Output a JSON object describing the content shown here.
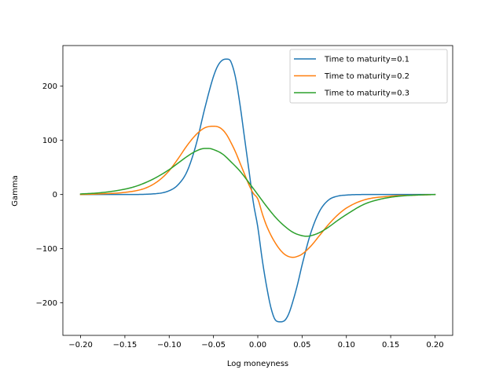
{
  "chart_data": {
    "type": "line",
    "title": "",
    "xlabel": "Log moneyness",
    "ylabel": "Gamma",
    "xlim": [
      -0.22,
      0.22
    ],
    "ylim": [
      -260,
      275
    ],
    "grid": false,
    "legend_placement": "top-right",
    "x_ticks": [
      {
        "value": -0.2,
        "label": "−0.20"
      },
      {
        "value": -0.15,
        "label": "−0.15"
      },
      {
        "value": -0.1,
        "label": "−0.10"
      },
      {
        "value": -0.05,
        "label": "−0.05"
      },
      {
        "value": 0.0,
        "label": "0.00"
      },
      {
        "value": 0.05,
        "label": "0.05"
      },
      {
        "value": 0.1,
        "label": "0.10"
      },
      {
        "value": 0.15,
        "label": "0.15"
      },
      {
        "value": 0.2,
        "label": "0.20"
      }
    ],
    "y_ticks": [
      {
        "value": -200,
        "label": "−200"
      },
      {
        "value": -100,
        "label": "−100"
      },
      {
        "value": 0,
        "label": "0"
      },
      {
        "value": 100,
        "label": "100"
      },
      {
        "value": 200,
        "label": "200"
      }
    ],
    "series": [
      {
        "name": "Time to maturity=0.1",
        "color": "#1f77b4",
        "x": [
          -0.2,
          -0.15,
          -0.12,
          -0.1,
          -0.09,
          -0.08,
          -0.07,
          -0.06,
          -0.05,
          -0.045,
          -0.04,
          -0.035,
          -0.032,
          -0.03,
          -0.025,
          -0.02,
          -0.015,
          -0.01,
          -0.005,
          0.0,
          0.005,
          0.01,
          0.015,
          0.02,
          0.025,
          0.03,
          0.035,
          0.04,
          0.045,
          0.05,
          0.06,
          0.07,
          0.08,
          0.09,
          0.1,
          0.12,
          0.15,
          0.2
        ],
        "y": [
          0,
          0,
          1,
          7,
          18,
          42,
          90,
          158,
          218,
          238,
          248,
          250,
          249,
          244,
          215,
          165,
          105,
          45,
          -15,
          -60,
          -120,
          -170,
          -210,
          -232,
          -235,
          -233,
          -220,
          -195,
          -165,
          -130,
          -70,
          -30,
          -10,
          -3,
          -1,
          0,
          0,
          0
        ]
      },
      {
        "name": "Time to maturity=0.2",
        "color": "#ff7f0e",
        "x": [
          -0.2,
          -0.18,
          -0.15,
          -0.13,
          -0.12,
          -0.11,
          -0.1,
          -0.09,
          -0.08,
          -0.07,
          -0.06,
          -0.05,
          -0.045,
          -0.04,
          -0.035,
          -0.03,
          -0.025,
          -0.02,
          -0.015,
          -0.01,
          -0.005,
          0.0,
          0.005,
          0.01,
          0.02,
          0.03,
          0.04,
          0.045,
          0.05,
          0.06,
          0.07,
          0.08,
          0.09,
          0.1,
          0.12,
          0.15,
          0.18,
          0.2
        ],
        "y": [
          0,
          1,
          4,
          10,
          17,
          28,
          44,
          66,
          90,
          110,
          123,
          126,
          125,
          120,
          110,
          95,
          78,
          58,
          38,
          18,
          2,
          -8,
          -35,
          -58,
          -90,
          -110,
          -116,
          -114,
          -110,
          -95,
          -75,
          -55,
          -38,
          -25,
          -10,
          -3,
          -1,
          0
        ]
      },
      {
        "name": "Time to maturity=0.3",
        "color": "#2ca02c",
        "x": [
          -0.2,
          -0.18,
          -0.16,
          -0.14,
          -0.12,
          -0.1,
          -0.09,
          -0.08,
          -0.07,
          -0.06,
          -0.055,
          -0.05,
          -0.04,
          -0.03,
          -0.02,
          -0.01,
          0.0,
          0.01,
          0.02,
          0.03,
          0.04,
          0.05,
          0.055,
          0.06,
          0.07,
          0.08,
          0.09,
          0.1,
          0.12,
          0.14,
          0.16,
          0.18,
          0.2
        ],
        "y": [
          1,
          3,
          7,
          14,
          27,
          46,
          58,
          70,
          80,
          85,
          85,
          83,
          75,
          60,
          43,
          22,
          0,
          -22,
          -42,
          -58,
          -70,
          -76,
          -77,
          -76,
          -70,
          -60,
          -48,
          -37,
          -18,
          -8,
          -3,
          -1,
          0
        ]
      }
    ]
  }
}
